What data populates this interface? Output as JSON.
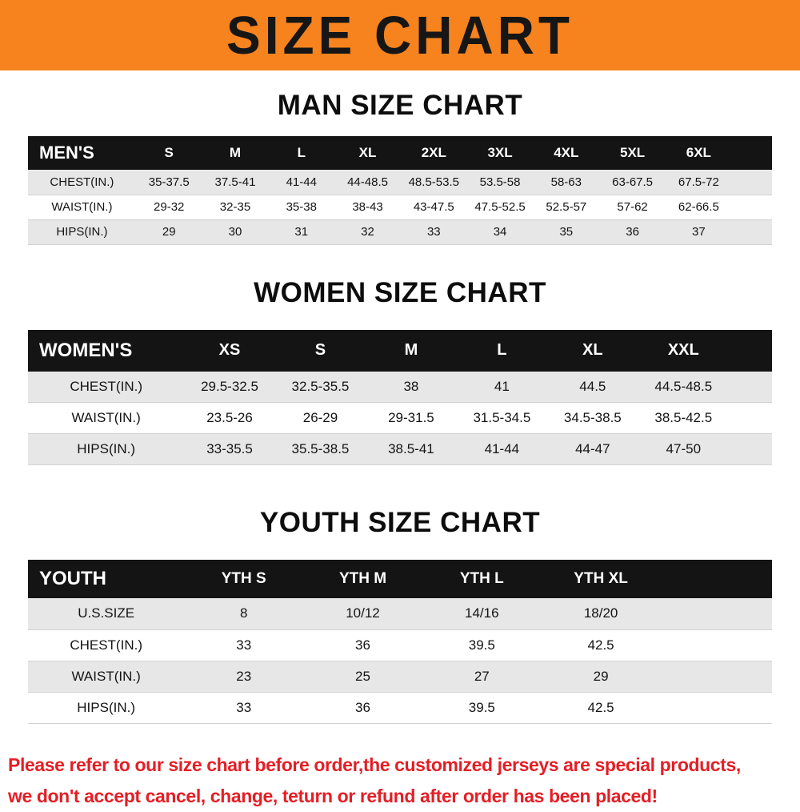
{
  "banner": {
    "title": "SIZE CHART"
  },
  "colors": {
    "banner_bg": "#F6831E",
    "header_row_bg": "#141414",
    "stripe": "#E7E7E7",
    "footer_color": "#E51E25"
  },
  "sections": [
    {
      "id": "men",
      "title": "MAN SIZE CHART",
      "table": {
        "name": "mens",
        "filler": true,
        "header": [
          "MEN'S",
          "S",
          "M",
          "L",
          "XL",
          "2XL",
          "3XL",
          "4XL",
          "5XL",
          "6XL"
        ],
        "rows": [
          [
            "CHEST(IN.)",
            "35-37.5",
            "37.5-41",
            "41-44",
            "44-48.5",
            "48.5-53.5",
            "53.5-58",
            "58-63",
            "63-67.5",
            "67.5-72"
          ],
          [
            "WAIST(IN.)",
            "29-32",
            "32-35",
            "35-38",
            "38-43",
            "43-47.5",
            "47.5-52.5",
            "52.5-57",
            "57-62",
            "62-66.5"
          ],
          [
            "HIPS(IN.)",
            "29",
            "30",
            "31",
            "32",
            "33",
            "34",
            "35",
            "36",
            "37"
          ]
        ]
      }
    },
    {
      "id": "women",
      "title": "WOMEN SIZE CHART",
      "table": {
        "name": "womens",
        "filler": true,
        "header": [
          "WOMEN'S",
          "XS",
          "S",
          "M",
          "L",
          "XL",
          "XXL"
        ],
        "rows": [
          [
            "CHEST(IN.)",
            "29.5-32.5",
            "32.5-35.5",
            "38",
            "41",
            "44.5",
            "44.5-48.5"
          ],
          [
            "WAIST(IN.)",
            "23.5-26",
            "26-29",
            "29-31.5",
            "31.5-34.5",
            "34.5-38.5",
            "38.5-42.5"
          ],
          [
            "HIPS(IN.)",
            "33-35.5",
            "35.5-38.5",
            "38.5-41",
            "41-44",
            "44-47",
            "47-50"
          ]
        ]
      }
    },
    {
      "id": "youth",
      "title": "YOUTH SIZE CHART",
      "table": {
        "name": "youth",
        "filler": true,
        "header": [
          "YOUTH",
          "YTH S",
          "YTH M",
          "YTH L",
          "YTH XL"
        ],
        "rows": [
          [
            "U.S.SIZE",
            "8",
            "10/12",
            "14/16",
            "18/20"
          ],
          [
            "CHEST(IN.)",
            "33",
            "36",
            "39.5",
            "42.5"
          ],
          [
            "WAIST(IN.)",
            "23",
            "25",
            "27",
            "29"
          ],
          [
            "HIPS(IN.)",
            "33",
            "36",
            "39.5",
            "42.5"
          ]
        ]
      }
    }
  ],
  "footer": {
    "lines": [
      "Please refer to our size chart before order,the customized jerseys are special products,",
      "we don't accept cancel, change, teturn or refund after order has been placed!"
    ]
  }
}
